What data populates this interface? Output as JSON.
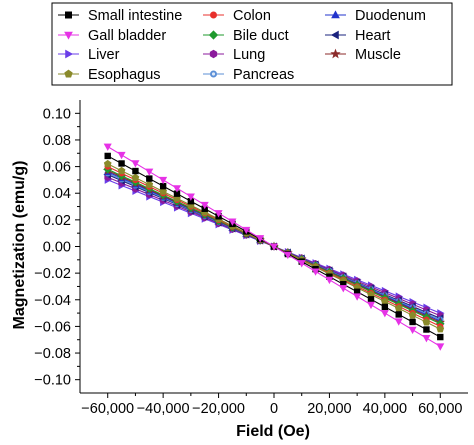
{
  "chart_data": {
    "type": "line",
    "xlabel": "Field (Oe)",
    "ylabel": "Magnetization (emu/g)",
    "xlim": [
      -70000,
      70000
    ],
    "ylim": [
      -0.11,
      0.11
    ],
    "x_ticks": [
      -60000,
      -40000,
      -20000,
      0,
      20000,
      40000,
      60000
    ],
    "x_tick_labels": [
      "−60,000",
      "−40,000",
      "−20,000",
      "0",
      "20,000",
      "40,000",
      "60,000"
    ],
    "y_ticks": [
      -0.1,
      -0.08,
      -0.06,
      -0.04,
      -0.02,
      0,
      0.02,
      0.04,
      0.06,
      0.08,
      0.1
    ],
    "y_tick_labels": [
      "−0.10",
      "−0.08",
      "−0.06",
      "−0.04",
      "−0.02",
      "0.00",
      "0.02",
      "0.04",
      "0.06",
      "0.08",
      "0.10"
    ],
    "x": [
      -60000,
      -55000,
      -50000,
      -45000,
      -40000,
      -35000,
      -30000,
      -25000,
      -20000,
      -15000,
      -10000,
      -5000,
      0,
      5000,
      10000,
      15000,
      20000,
      25000,
      30000,
      35000,
      40000,
      45000,
      50000,
      55000,
      60000
    ],
    "legend_position": "top",
    "series": [
      {
        "name": "Small intestine",
        "slope": -0.068,
        "color": "#000000",
        "marker": "square"
      },
      {
        "name": "Colon",
        "slope": -0.06,
        "color": "#e8302c",
        "marker": "circle"
      },
      {
        "name": "Duodenum",
        "slope": -0.056,
        "color": "#2233cc",
        "marker": "triangle-up"
      },
      {
        "name": "Gall bladder",
        "slope": -0.075,
        "color": "#e632e6",
        "marker": "triangle-down"
      },
      {
        "name": "Bile duct",
        "slope": -0.058,
        "color": "#1f9a2e",
        "marker": "diamond"
      },
      {
        "name": "Heart",
        "slope": -0.054,
        "color": "#1a237e",
        "marker": "triangle-left"
      },
      {
        "name": "Liver",
        "slope": -0.05,
        "color": "#6a3de8",
        "marker": "triangle-right"
      },
      {
        "name": "Lung",
        "slope": -0.052,
        "color": "#8b1a9c",
        "marker": "hexagon"
      },
      {
        "name": "Muscle",
        "slope": -0.057,
        "color": "#8b2a2a",
        "marker": "star"
      },
      {
        "name": "Esophagus",
        "slope": -0.062,
        "color": "#8a8a2a",
        "marker": "pentagon"
      },
      {
        "name": "Pancreas",
        "slope": -0.055,
        "color": "#5b8fd6",
        "marker": "circle-dot"
      }
    ]
  }
}
